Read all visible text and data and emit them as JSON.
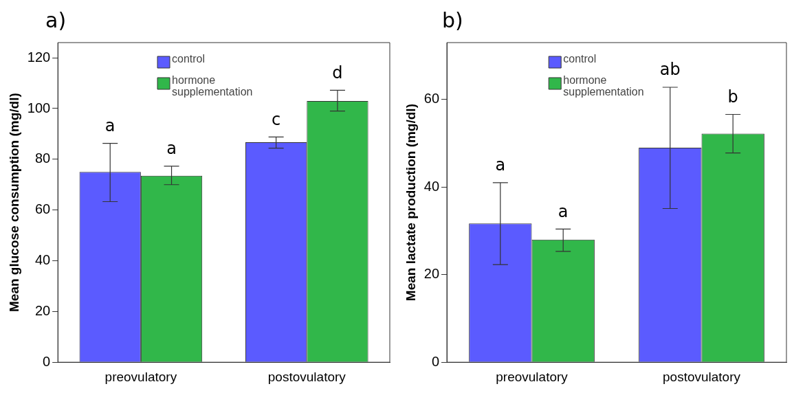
{
  "chart_data": [
    {
      "type": "bar",
      "title": "a)",
      "ylabel": "Mean glucose consumption (mg/dl)",
      "categories": [
        "preovulatory",
        "postovulatory"
      ],
      "series": [
        {
          "name": "control",
          "color": "#5b5bff",
          "values": [
            75,
            86.7
          ],
          "errors": [
            [
              63.3,
              86.3
            ],
            [
              84.4,
              88.8
            ]
          ]
        },
        {
          "name": "hormone supplementation",
          "color": "#31b74a",
          "values": [
            73.5,
            103
          ],
          "errors": [
            [
              70,
              77.3
            ],
            [
              99,
              107.2
            ]
          ]
        }
      ],
      "ylim": [
        0,
        126
      ],
      "yticks": [
        0,
        20,
        40,
        60,
        80,
        100,
        120
      ],
      "grid": false,
      "legend": "top",
      "annotations": [
        "a",
        "a",
        "c",
        "d"
      ]
    },
    {
      "type": "bar",
      "title": "b)",
      "ylabel": "Mean lactate production (mg/dl)",
      "categories": [
        "preovulatory",
        "postovulatory"
      ],
      "series": [
        {
          "name": "control",
          "color": "#5b5bff",
          "values": [
            31.7,
            49
          ],
          "errors": [
            [
              22.3,
              41
            ],
            [
              35.1,
              62.8
            ]
          ]
        },
        {
          "name": "hormone supplementation",
          "color": "#31b74a",
          "values": [
            28,
            52.2
          ],
          "errors": [
            [
              25.3,
              30.4
            ],
            [
              47.8,
              56.6
            ]
          ]
        }
      ],
      "ylim": [
        0,
        73
      ],
      "yticks": [
        0,
        20,
        40,
        60
      ],
      "grid": false,
      "legend": "top",
      "annotations": [
        "a",
        "a",
        "ab",
        "b"
      ]
    }
  ]
}
